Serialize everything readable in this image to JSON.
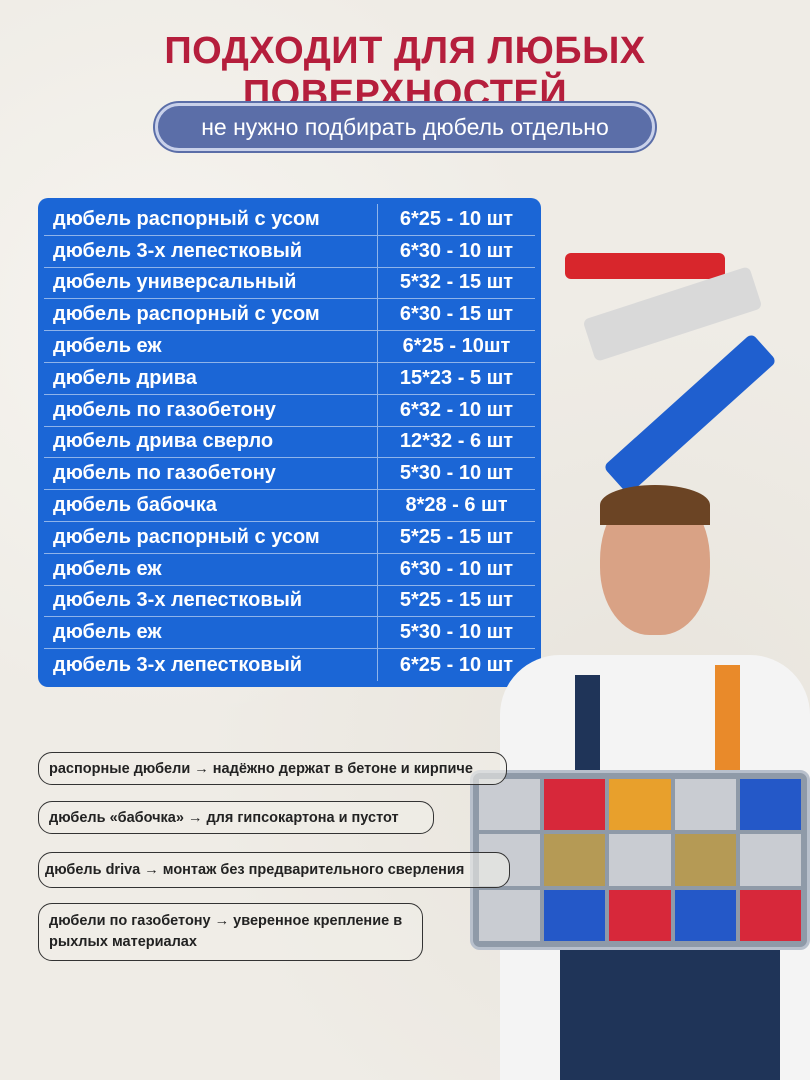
{
  "header": {
    "title": "ПОДХОДИТ ДЛЯ ЛЮБЫХ ПОВЕРХНОСТЕЙ",
    "subtitle": "не нужно подбирать дюбель отдельно"
  },
  "table": {
    "rows": [
      {
        "name": "дюбель распорный с усом",
        "spec": "6*25 - 10 шт"
      },
      {
        "name": "дюбель 3-х лепестковый",
        "spec": "6*30 - 10 шт"
      },
      {
        "name": "дюбель универсальный",
        "spec": "5*32 - 15 шт"
      },
      {
        "name": "дюбель распорный с усом",
        "spec": "6*30 - 15 шт"
      },
      {
        "name": "дюбель еж",
        "spec": "6*25 - 10шт"
      },
      {
        "name": "дюбель дрива",
        "spec": "15*23 - 5 шт"
      },
      {
        "name": "дюбель по газобетону",
        "spec": "6*32 - 10 шт"
      },
      {
        "name": "дюбель дрива сверло",
        "spec": "12*32 - 6 шт"
      },
      {
        "name": "дюбель по газобетону",
        "spec": "5*30 - 10 шт"
      },
      {
        "name": "дюбель бабочка",
        "spec": "8*28 - 6 шт"
      },
      {
        "name": "дюбель распорный с усом",
        "spec": "5*25 - 15 шт"
      },
      {
        "name": "дюбель еж",
        "spec": "6*30 - 10 шт"
      },
      {
        "name": "дюбель 3-х лепестковый",
        "spec": "5*25 - 15 шт"
      },
      {
        "name": "дюбель еж",
        "spec": "5*30 - 10 шт"
      },
      {
        "name": "дюбель 3-х лепестковый",
        "spec": "6*25 - 10 шт"
      }
    ]
  },
  "notes": [
    "распорные дюбели → надёжно держат в бетоне и кирпиче",
    "дюбель «бабочка» → для гипсокартона и пустот",
    "дюбель driva → монтаж без предварительного сверления",
    "дюбели по газобетону → уверенное крепление в рыхлых материалах"
  ],
  "colors": {
    "title": "#b51e3c",
    "table": "#1b66d6",
    "pill": "#5b6ea8"
  }
}
